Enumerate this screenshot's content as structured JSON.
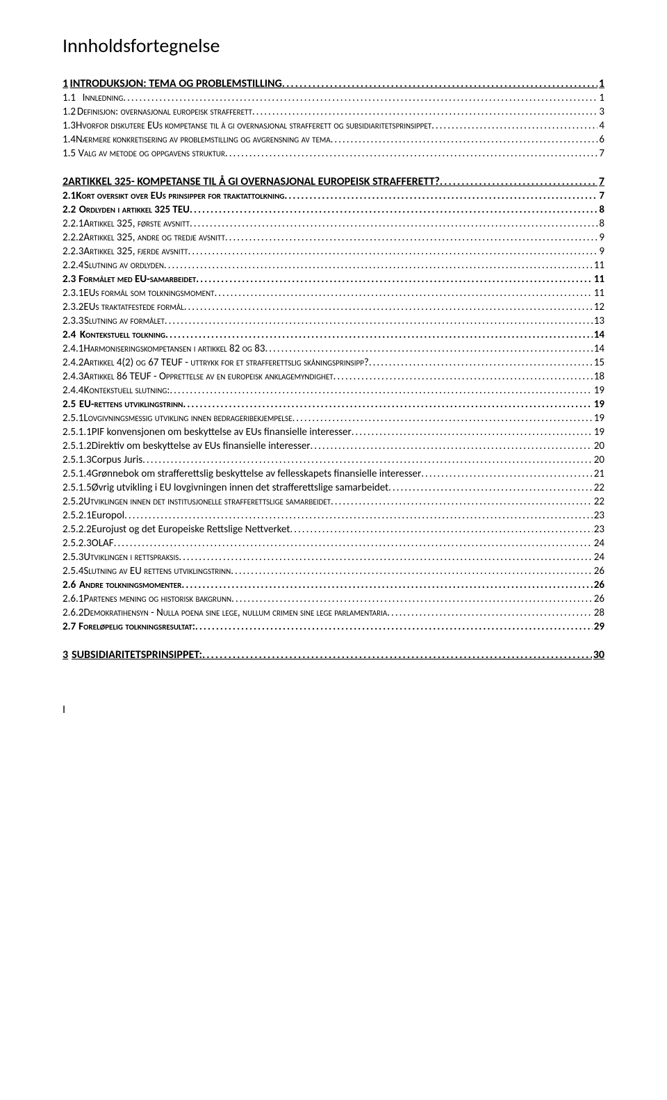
{
  "title": "Innholdsfortegnelse",
  "footer": "I",
  "colors": {
    "text": "#000000",
    "background": "#ffffff"
  },
  "typography": {
    "body_fontsize": 15,
    "title_fontsize": 28,
    "font_family": "Calibri"
  },
  "toc": [
    {
      "level": "lvl1",
      "num": "1",
      "label": "INTRODUKSJON: TEMA OG PROBLEMSTILLING",
      "page": "1"
    },
    {
      "level": "lvl2",
      "num": "1.1",
      "label": "Innledning",
      "page": "1"
    },
    {
      "level": "lvl2",
      "num": "1.2",
      "label": "Definisjon: overnasjonal europeisk strafferett",
      "page": "3"
    },
    {
      "level": "lvl2",
      "num": "1.3",
      "label": "Hvorfor diskutere EUs kompetanse til å gi overnasjonal strafferett og subsidiaritetsprinsippet",
      "page": "4"
    },
    {
      "level": "lvl2",
      "num": "1.4",
      "label": "Nærmere konkretisering av problemstilling og avgrensning av tema",
      "page": "6"
    },
    {
      "level": "lvl2",
      "num": "1.5",
      "label": "Valg av metode og oppgavens struktur",
      "page": "7"
    },
    {
      "level": "lvl1",
      "num": "2",
      "label": "ARTIKKEL 325- KOMPETANSE TIL Å GI OVERNASJONAL EUROPEISK STRAFFERETT?",
      "page": "7"
    },
    {
      "level": "lvl2b",
      "num": "2.1",
      "label": "Kort oversikt over EUs prinsipper for traktattolkning",
      "page": "7"
    },
    {
      "level": "lvl2b",
      "num": "2.2",
      "label": "Ordlyden i artikkel 325 TEU",
      "page": "8"
    },
    {
      "level": "lvl3",
      "num": "2.2.1",
      "label": "Artikkel 325, første avsnitt",
      "page": "8"
    },
    {
      "level": "lvl3",
      "num": "2.2.2",
      "label": "Artikkel 325, andre og tredje avsnitt",
      "page": "9"
    },
    {
      "level": "lvl3",
      "num": "2.2.3",
      "label": "Artikkel 325, fjerde avsnitt",
      "page": "9"
    },
    {
      "level": "lvl3",
      "num": "2.2.4",
      "label": "Slutning av ordlyden",
      "page": "11"
    },
    {
      "level": "lvl2b",
      "num": "2.3",
      "label": "Formålet med EU-samarbeidet",
      "page": "11"
    },
    {
      "level": "lvl3",
      "num": "2.3.1",
      "label": "EUs formål som tolkningsmoment",
      "page": "11"
    },
    {
      "level": "lvl3",
      "num": "2.3.2",
      "label": "EUs traktatfestede formål",
      "page": "12"
    },
    {
      "level": "lvl3",
      "num": "2.3.3",
      "label": "Slutning av formålet",
      "page": "13"
    },
    {
      "level": "lvl2b",
      "num": "2.4",
      "label": "Kontekstuell tolkning",
      "page": "14"
    },
    {
      "level": "lvl3",
      "num": "2.4.1",
      "label": "Harmoniseringskompetansen i artikkel 82 og 83",
      "page": "14"
    },
    {
      "level": "lvl3",
      "num": "2.4.2",
      "label": "Artikkel 4(2) og 67 TEUF - uttrykk for et strafferettslig skåningsprinsipp?",
      "page": "15"
    },
    {
      "level": "lvl3",
      "num": "2.4.3",
      "label": "Artikkel 86 TEUF - Opprettelse av en europeisk anklagemyndighet",
      "page": "18"
    },
    {
      "level": "lvl3",
      "num": "2.4.4",
      "label": "Kontekstuell slutning:",
      "page": "19"
    },
    {
      "level": "lvl2b",
      "num": "2.5",
      "label": "EU-rettens utviklingstrinn",
      "page": "19"
    },
    {
      "level": "lvl3",
      "num": "2.5.1",
      "label": "Lovgivningsmessig utvikling innen bedrageribekjempelse",
      "page": "19"
    },
    {
      "level": "lvl4",
      "num": "2.5.1.1",
      "label": "PIF konvensjonen om beskyttelse av EUs finansielle interesser",
      "page": "19"
    },
    {
      "level": "lvl4",
      "num": "2.5.1.2",
      "label": "Direktiv om beskyttelse av EUs finansielle interesser",
      "page": "20"
    },
    {
      "level": "lvl4",
      "num": "2.5.1.3",
      "label": "Corpus Juris",
      "page": "20"
    },
    {
      "level": "lvl4",
      "num": "2.5.1.4",
      "label": "Grønnebok om strafferettslig beskyttelse av fellesskapets finansielle interesser",
      "page": "21"
    },
    {
      "level": "lvl4",
      "num": "2.5.1.5",
      "label": "Øvrig utvikling i EU lovgivningen innen det strafferettslige samarbeidet",
      "page": "22"
    },
    {
      "level": "lvl3",
      "num": "2.5.2",
      "label": "Utviklingen innen det institusjonelle strafferettslige samarbeidet",
      "page": "22"
    },
    {
      "level": "lvl4",
      "num": "2.5.2.1",
      "label": "Europol",
      "page": "23"
    },
    {
      "level": "lvl4",
      "num": "2.5.2.2",
      "label": "Eurojust og det Europeiske Rettslige Nettverket",
      "page": "23"
    },
    {
      "level": "lvl4",
      "num": "2.5.2.3",
      "label": "OLAF",
      "page": "24"
    },
    {
      "level": "lvl3",
      "num": "2.5.3",
      "label": "Utviklingen i rettspraksis",
      "page": "24"
    },
    {
      "level": "lvl3",
      "num": "2.5.4",
      "label": "Slutning av EU rettens utviklingstrinn",
      "page": "26"
    },
    {
      "level": "lvl2b",
      "num": "2.6",
      "label": "Andre tolkningsmomenter",
      "page": "26"
    },
    {
      "level": "lvl3",
      "num": "2.6.1",
      "label": "Partenes mening og historisk bakgrunn",
      "page": "26"
    },
    {
      "level": "lvl3",
      "num": "2.6.2",
      "label": "Demokratihensyn - Nulla poena sine lege, nullum crimen sine lege parlamentaria",
      "page": "28"
    },
    {
      "level": "lvl2b",
      "num": "2.7",
      "label": "Foreløpelig tolkningsresultat:",
      "page": "29"
    },
    {
      "level": "lvl1",
      "num": "3",
      "label": "SUBSIDIARITETSPRINSIPPET:",
      "page": "30"
    }
  ]
}
